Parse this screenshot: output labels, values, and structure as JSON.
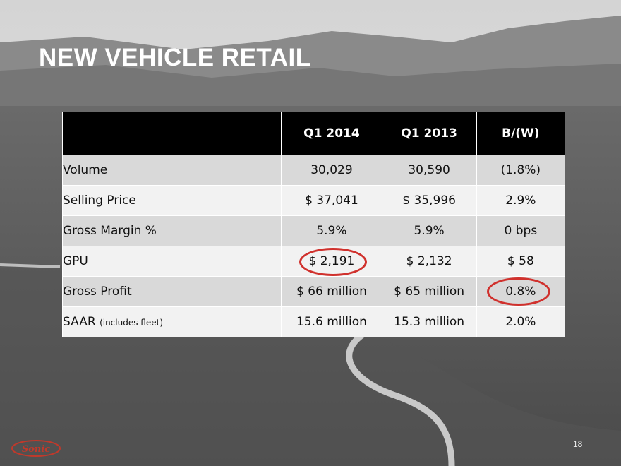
{
  "slide": {
    "title": "NEW VEHICLE RETAIL",
    "page_number": "18",
    "logo_text": "Sonic"
  },
  "colors": {
    "header_bg": "#000000",
    "row_dark": "#d9d9d9",
    "row_light": "#f2f2f2",
    "highlight_circle": "#d0312d",
    "title_text": "#ffffff"
  },
  "table": {
    "headers": [
      "",
      "Q1 2014",
      "Q1 2013",
      "B/(W)"
    ],
    "rows": [
      {
        "label": "Volume",
        "label_note": "",
        "q1_2014": "30,029",
        "q1_2013": "30,590",
        "bw": "(1.8%)"
      },
      {
        "label": "Selling Price",
        "label_note": "",
        "q1_2014": "$ 37,041",
        "q1_2013": "$ 35,996",
        "bw": "2.9%"
      },
      {
        "label": "Gross Margin %",
        "label_note": "",
        "q1_2014": "5.9%",
        "q1_2013": "5.9%",
        "bw": "0 bps"
      },
      {
        "label": "GPU",
        "label_note": "",
        "q1_2014": "$ 2,191",
        "q1_2013": "$ 2,132",
        "bw": "$ 58"
      },
      {
        "label": "Gross Profit",
        "label_note": "",
        "q1_2014": "$ 66 million",
        "q1_2013": "$ 65 million",
        "bw": "0.8%"
      },
      {
        "label": "SAAR",
        "label_note": "(includes fleet)",
        "q1_2014": "15.6 million",
        "q1_2013": "15.3  million",
        "bw": "2.0%"
      }
    ]
  }
}
